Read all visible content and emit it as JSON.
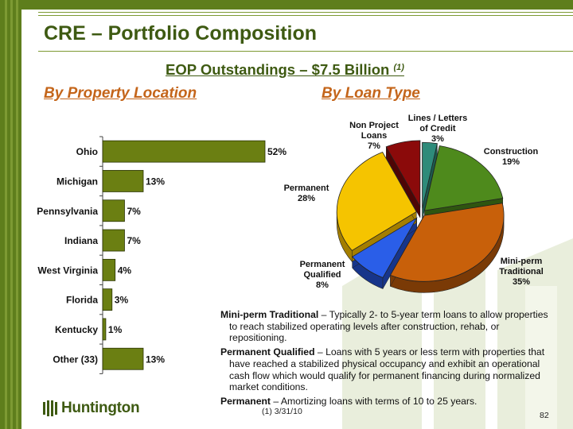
{
  "slide": {
    "title": "CRE – Portfolio Composition",
    "subtitle": "EOP Outstandings – $7.5 Billion ",
    "subtitle_note": "(1)",
    "left_section": "By Property Location",
    "right_section": "By Loan Type",
    "footnote": "(1)   3/31/10",
    "page_number": "82",
    "logo_text": "Huntington"
  },
  "definitions": [
    {
      "term": "Mini-perm Traditional",
      "text": " – Typically 2- to 5-year term loans to allow properties to reach stabilized operating levels after construction, rehab, or repositioning."
    },
    {
      "term": "Permanent Qualified",
      "text": " – Loans with 5 years or less term with properties that have reached a stabilized physical occupancy and exhibit an operational cash flow which would qualify for permanent financing during normalized market conditions."
    },
    {
      "term": "Permanent",
      "text": " – Amortizing loans with terms of 10 to 25 years."
    }
  ],
  "colors": {
    "brand_green": "#5e7e1c",
    "title_green": "#3e5a12",
    "section_orange": "#c4651a",
    "bar_fill": "#6b7f12"
  },
  "chart_data": [
    {
      "type": "bar",
      "orientation": "horizontal",
      "title": "By Property Location",
      "categories": [
        "Ohio",
        "Michigan",
        "Pennsylvania",
        "Indiana",
        "West Virginia",
        "Florida",
        "Kentucky",
        "Other (33)"
      ],
      "values": [
        52,
        13,
        7,
        7,
        4,
        3,
        1,
        13
      ],
      "data_labels": [
        "52%",
        "13%",
        "7%",
        "7%",
        "4%",
        "3%",
        "1%",
        "13%"
      ],
      "unit": "%",
      "xlim": [
        0,
        60
      ]
    },
    {
      "type": "pie",
      "style": "3d-exploded",
      "title": "By Loan Type",
      "slices": [
        {
          "name": "Lines / Letters of Credit",
          "label_lines": [
            "Lines / Letters",
            "of Credit"
          ],
          "value": 3,
          "pct_label": "3%",
          "color": "#2e8b7a",
          "dark": "#1b5a4e"
        },
        {
          "name": "Construction",
          "label_lines": [
            "Construction"
          ],
          "value": 19,
          "pct_label": "19%",
          "color": "#4e8a1c",
          "dark": "#2f5510"
        },
        {
          "name": "Mini-perm Traditional",
          "label_lines": [
            "Mini-perm",
            "Traditional"
          ],
          "value": 35,
          "pct_label": "35%",
          "color": "#c8600a",
          "dark": "#7a3a06"
        },
        {
          "name": "Permanent Qualified",
          "label_lines": [
            "Permanent",
            "Qualified"
          ],
          "value": 8,
          "pct_label": "8%",
          "color": "#2a5ee8",
          "dark": "#17358a"
        },
        {
          "name": "Permanent",
          "label_lines": [
            "Permanent"
          ],
          "value": 28,
          "pct_label": "28%",
          "color": "#f5c400",
          "dark": "#a47e00"
        },
        {
          "name": "Non Project Loans",
          "label_lines": [
            "Non Project",
            "Loans"
          ],
          "value": 7,
          "pct_label": "7%",
          "color": "#8b0a0a",
          "dark": "#4e0505"
        }
      ]
    }
  ]
}
